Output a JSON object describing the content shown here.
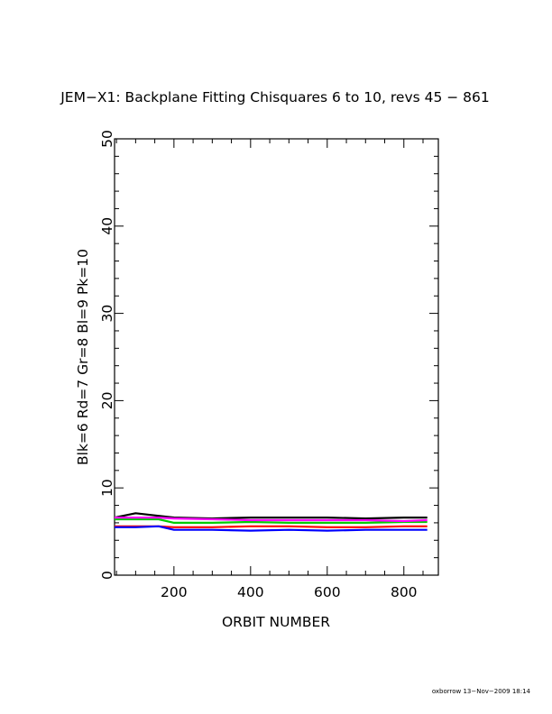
{
  "chart_data": {
    "type": "line",
    "title": "JEM−X1: Backplane Fitting Chisquares 6 to 10, revs 45 − 861",
    "xlabel": "ORBIT NUMBER",
    "ylabel": "Blk=6 Rd=7 Gr=8 Bl=9 Pk=10",
    "xlim": [
      45,
      890
    ],
    "ylim": [
      0,
      50
    ],
    "xticks": [
      200,
      400,
      600,
      800
    ],
    "yticks": [
      0,
      10,
      20,
      30,
      40,
      50
    ],
    "grid": false,
    "series": [
      {
        "name": "Blk=6",
        "color": "#000000",
        "x": [
          45,
          100,
          160,
          200,
          300,
          400,
          500,
          600,
          700,
          800,
          861
        ],
        "y": [
          6.6,
          7.1,
          6.8,
          6.6,
          6.5,
          6.6,
          6.6,
          6.6,
          6.5,
          6.6,
          6.6
        ]
      },
      {
        "name": "Rd=7",
        "color": "#ff0000",
        "x": [
          45,
          100,
          160,
          200,
          300,
          400,
          500,
          600,
          700,
          800,
          861
        ],
        "y": [
          5.6,
          5.6,
          5.6,
          5.5,
          5.5,
          5.6,
          5.6,
          5.5,
          5.5,
          5.6,
          5.6
        ]
      },
      {
        "name": "Gr=8",
        "color": "#00cc00",
        "x": [
          45,
          100,
          160,
          200,
          300,
          400,
          500,
          600,
          700,
          800,
          861
        ],
        "y": [
          6.4,
          6.4,
          6.4,
          6.0,
          6.0,
          6.1,
          6.0,
          6.0,
          6.0,
          6.1,
          6.1
        ]
      },
      {
        "name": "Bl=9",
        "color": "#0000ff",
        "x": [
          45,
          100,
          160,
          200,
          300,
          400,
          500,
          600,
          700,
          800,
          861
        ],
        "y": [
          5.5,
          5.5,
          5.6,
          5.2,
          5.2,
          5.1,
          5.2,
          5.1,
          5.2,
          5.2,
          5.2
        ]
      },
      {
        "name": "Pk=10",
        "color": "#ff00ff",
        "x": [
          45,
          100,
          160,
          200,
          300,
          400,
          500,
          600,
          700,
          800,
          861
        ],
        "y": [
          6.6,
          6.6,
          6.6,
          6.5,
          6.4,
          6.3,
          6.3,
          6.3,
          6.3,
          6.2,
          6.3
        ]
      }
    ],
    "annotation": "oxborrow 13−Nov−2009 18:14"
  }
}
